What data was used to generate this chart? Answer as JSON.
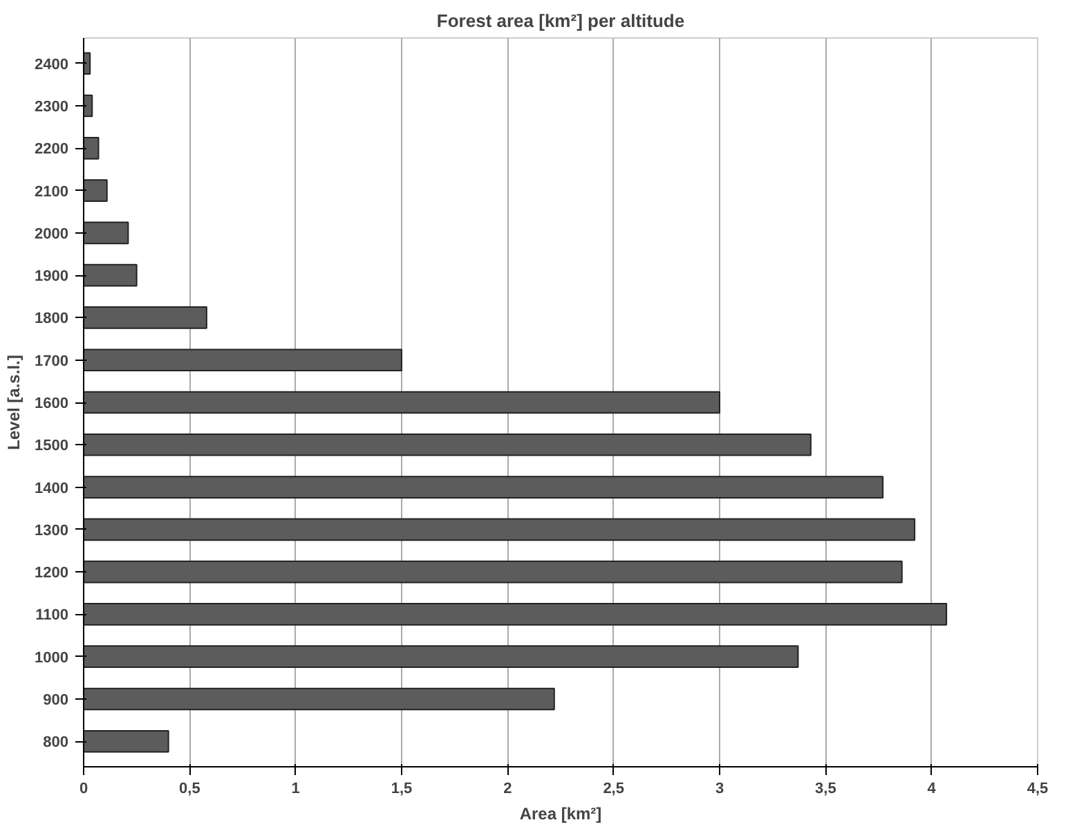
{
  "chart_data": {
    "type": "bar",
    "orientation": "horizontal",
    "title": "Forest area [km²] per altitude",
    "xlabel": "Area [km²]",
    "ylabel": "Level [a.s.l.]",
    "categories": [
      "2400",
      "2300",
      "2200",
      "2100",
      "2000",
      "1900",
      "1800",
      "1700",
      "1600",
      "1500",
      "1400",
      "1300",
      "1200",
      "1100",
      "1000",
      "900",
      "800"
    ],
    "values": [
      0.03,
      0.04,
      0.07,
      0.11,
      0.21,
      0.25,
      0.58,
      1.5,
      3.0,
      3.43,
      3.77,
      3.92,
      3.86,
      4.07,
      3.37,
      2.22,
      0.4
    ],
    "color": "#5c5c5c",
    "xlim": [
      0,
      4.5
    ],
    "xticks": [
      0,
      {
        "value": 0.5,
        "label": "0,5"
      },
      1,
      {
        "value": 1.5,
        "label": "1,5"
      },
      2,
      {
        "value": 2.5,
        "label": "2,5"
      },
      3,
      {
        "value": 3.5,
        "label": "3,5"
      },
      4,
      {
        "value": 4.5,
        "label": "4,5"
      }
    ],
    "grid": "x"
  }
}
